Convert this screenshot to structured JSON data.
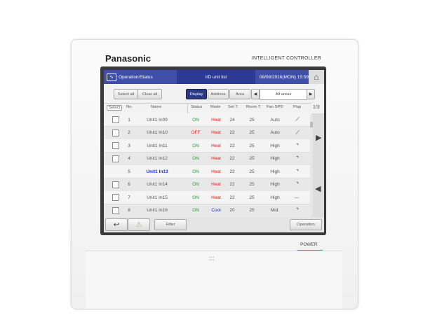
{
  "device": {
    "brand": "Panasonic",
    "model": "INTELLIGENT CONTROLLER",
    "power_label": "POWER",
    "led_color": "#2fbf3a"
  },
  "header": {
    "section": "Operation/Status",
    "title": "I/D unit list",
    "datetime": "08/08/2016(MON) 15:59"
  },
  "toolbar": {
    "select_all": "Select all",
    "clear_all": "Clear all",
    "display": "Display",
    "address": "Address",
    "area": "Area",
    "area_value": "All areas"
  },
  "columns": {
    "select": "Select",
    "no": "No.",
    "name": "Name",
    "status": "Status",
    "mode": "Mode",
    "set_t": "Set T.",
    "room_t": "Room T.",
    "fan": "Fan SPD",
    "flap": "Flap",
    "page": "1/3"
  },
  "rows": [
    {
      "no": "1",
      "name": "Unit1 In09",
      "status": "ON",
      "mode": "Heat",
      "set": "24",
      "room": "25",
      "fan": "Auto",
      "flap": "swing-icon",
      "check": true
    },
    {
      "no": "2",
      "name": "Unit1 In10",
      "status": "OFF",
      "mode": "Heat",
      "set": "22",
      "room": "25",
      "fan": "Auto",
      "flap": "swing-icon",
      "check": true
    },
    {
      "no": "3",
      "name": "Unit1 In11",
      "status": "ON",
      "mode": "Heat",
      "set": "22",
      "room": "25",
      "fan": "High",
      "flap": "flap-icon",
      "check": true
    },
    {
      "no": "4",
      "name": "Unit1 In12",
      "status": "ON",
      "mode": "Heat",
      "set": "22",
      "room": "25",
      "fan": "High",
      "flap": "flap-icon",
      "check": true
    },
    {
      "no": "5",
      "name": "Unit1 In13",
      "status": "ON",
      "mode": "Heat",
      "set": "22",
      "room": "25",
      "fan": "High",
      "flap": "flap-icon",
      "check": false
    },
    {
      "no": "6",
      "name": "Unit1 In14",
      "status": "ON",
      "mode": "Heat",
      "set": "22",
      "room": "25",
      "fan": "High",
      "flap": "flap-icon",
      "check": true
    },
    {
      "no": "7",
      "name": "Unit1 In15",
      "status": "ON",
      "mode": "Heat",
      "set": "22",
      "room": "25",
      "fan": "High",
      "flap": "---",
      "check": true
    },
    {
      "no": "8",
      "name": "Unit1 In16",
      "status": "ON",
      "mode": "Cool",
      "set": "20",
      "room": "25",
      "fan": "Mid.",
      "flap": "flap-icon",
      "check": true
    }
  ],
  "bottom": {
    "filter": "Filter",
    "operation": "Operation"
  },
  "colors": {
    "on": "#2e9a3a",
    "off": "#e03030",
    "heat": "#e02020",
    "cool": "#2030d0",
    "highlight_name": "#2030e0",
    "header": "#3f4fa8"
  }
}
